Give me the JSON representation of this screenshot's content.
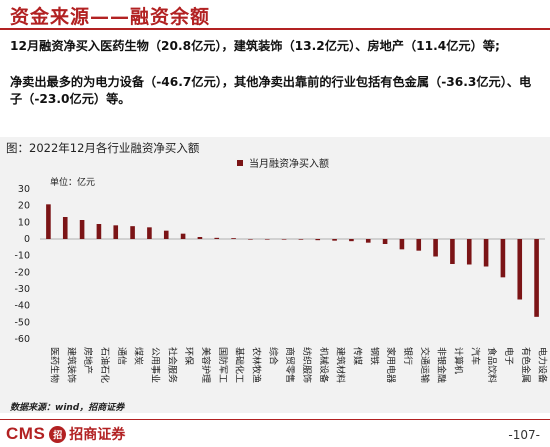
{
  "slide": {
    "title": "资金来源——融资余额",
    "bullets": [
      "12月融资净买入医药生物（20.8亿元），建筑装饰（13.2亿元）、房地产（11.4亿元）等;",
      "净卖出最多的为电力设备（-46.7亿元），其他净卖出靠前的行业包括有色金属（-36.3亿元）、电子（-23.0亿元）等。"
    ]
  },
  "chart_data": {
    "type": "bar",
    "title": "图：2022年12月各行业融资净买入额",
    "unit_label": "单位：亿元",
    "categories": [
      "医药生物",
      "建筑装饰",
      "房地产",
      "石油石化",
      "通信",
      "煤炭",
      "公用事业",
      "社会服务",
      "环保",
      "美容护理",
      "国防军工",
      "基础化工",
      "农林牧渔",
      "综合",
      "商贸零售",
      "纺织服饰",
      "机械设备",
      "建筑材料",
      "传媒",
      "钢铁",
      "家用电器",
      "银行",
      "交通运输",
      "非银金融",
      "计算机",
      "汽车",
      "食品饮料",
      "电子",
      "有色金属",
      "电力设备"
    ],
    "series": [
      {
        "name": "当月融资净买入额",
        "color": "#7b1416",
        "values": [
          20.8,
          13.2,
          11.4,
          9.0,
          8.2,
          7.7,
          7.0,
          5.0,
          3.2,
          1.2,
          0.7,
          0.5,
          -0.1,
          -0.2,
          -0.3,
          -0.4,
          -0.7,
          -1.0,
          -1.3,
          -2.2,
          -3.0,
          -6.2,
          -7.0,
          -10.5,
          -15.0,
          -15.3,
          -16.5,
          -23.0,
          -36.3,
          -46.7
        ]
      }
    ],
    "ylim": [
      -60,
      30
    ],
    "yticks": [
      30,
      20,
      10,
      0,
      -10,
      -20,
      -30,
      -40,
      -50,
      -60
    ],
    "legend_position": "top-center",
    "grid": false
  },
  "footer": {
    "source": "数据来源：wind，招商证券",
    "logo_text": "CMS",
    "logo_seal": "招",
    "logo_name": "招商证券",
    "page": "-107-"
  }
}
